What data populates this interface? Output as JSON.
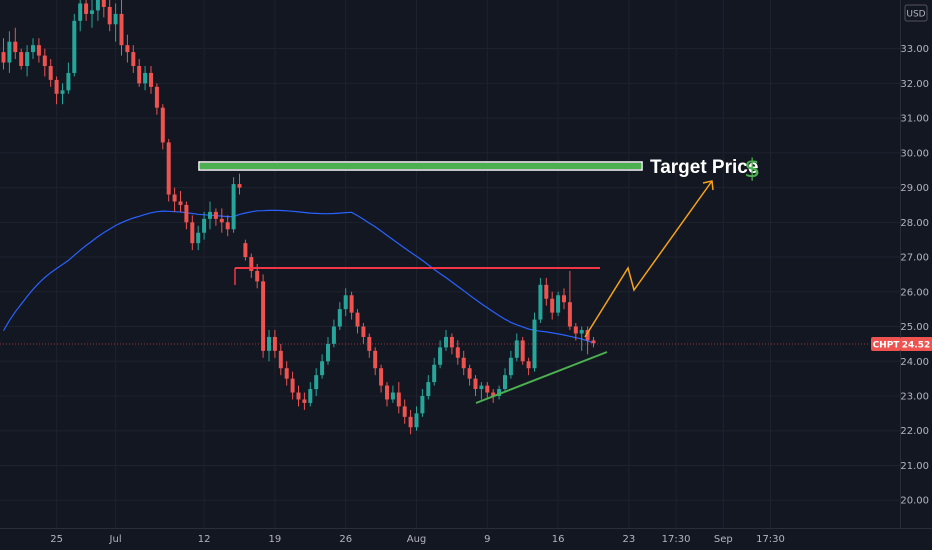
{
  "chart_data": {
    "type": "candlestick",
    "symbol": "CHPT",
    "last_price": "24.52",
    "currency_label": "USD",
    "ylim": [
      19.2,
      34.4
    ],
    "yticks": [
      "20.00",
      "21.00",
      "22.00",
      "23.00",
      "24.00",
      "25.00",
      "26.00",
      "27.00",
      "28.00",
      "29.00",
      "30.00",
      "31.00",
      "32.00",
      "33.00"
    ],
    "xticks": [
      {
        "label": "25",
        "index": 9
      },
      {
        "label": "Jul",
        "index": 19
      },
      {
        "label": "12",
        "index": 34
      },
      {
        "label": "19",
        "index": 46
      },
      {
        "label": "26",
        "index": 58
      },
      {
        "label": "Aug",
        "index": 70
      },
      {
        "label": "9",
        "index": 82
      },
      {
        "label": "16",
        "index": 94
      },
      {
        "label": "23",
        "index": 106
      },
      {
        "label": "17:30",
        "index": 114
      },
      {
        "label": "Sep",
        "index": 122
      },
      {
        "label": "17:30",
        "index": 130
      }
    ],
    "candles": [
      [
        32.9,
        33.3,
        32.4,
        32.6
      ],
      [
        32.6,
        33.5,
        32.3,
        33.2
      ],
      [
        33.2,
        33.6,
        32.7,
        32.9
      ],
      [
        32.9,
        33.0,
        32.4,
        32.5
      ],
      [
        32.5,
        33.1,
        32.2,
        32.9
      ],
      [
        32.9,
        33.3,
        32.7,
        33.1
      ],
      [
        33.1,
        33.3,
        32.6,
        32.8
      ],
      [
        32.8,
        33.0,
        32.2,
        32.5
      ],
      [
        32.5,
        32.7,
        31.9,
        32.1
      ],
      [
        32.1,
        32.2,
        31.4,
        31.7
      ],
      [
        31.7,
        32.0,
        31.4,
        31.8
      ],
      [
        31.8,
        32.6,
        31.7,
        32.3
      ],
      [
        32.3,
        34.0,
        32.2,
        33.8
      ],
      [
        33.8,
        34.6,
        33.5,
        34.3
      ],
      [
        34.3,
        34.6,
        33.8,
        34.0
      ],
      [
        34.0,
        34.5,
        33.6,
        34.1
      ],
      [
        34.1,
        34.6,
        33.8,
        34.4
      ],
      [
        34.4,
        34.6,
        33.9,
        34.2
      ],
      [
        34.2,
        34.4,
        33.5,
        33.7
      ],
      [
        33.7,
        34.3,
        33.2,
        34.0
      ],
      [
        34.0,
        34.4,
        32.8,
        33.1
      ],
      [
        33.1,
        33.4,
        32.6,
        32.9
      ],
      [
        32.9,
        33.1,
        32.3,
        32.5
      ],
      [
        32.5,
        32.7,
        31.9,
        32.0
      ],
      [
        32.0,
        32.5,
        31.8,
        32.3
      ],
      [
        32.3,
        32.5,
        31.7,
        31.9
      ],
      [
        31.9,
        32.0,
        31.1,
        31.3
      ],
      [
        31.3,
        31.4,
        30.1,
        30.3
      ],
      [
        30.3,
        30.4,
        28.6,
        28.8
      ],
      [
        28.8,
        29.0,
        28.3,
        28.6
      ],
      [
        28.6,
        28.9,
        28.3,
        28.5
      ],
      [
        28.5,
        28.6,
        27.8,
        28.0
      ],
      [
        28.0,
        28.2,
        27.2,
        27.4
      ],
      [
        27.4,
        27.9,
        27.2,
        27.7
      ],
      [
        27.7,
        28.3,
        27.5,
        28.1
      ],
      [
        28.1,
        28.6,
        27.8,
        28.3
      ],
      [
        28.3,
        28.4,
        27.9,
        28.1
      ],
      [
        28.1,
        28.4,
        27.7,
        28.0
      ],
      [
        28.0,
        28.2,
        27.6,
        27.8
      ],
      [
        27.8,
        29.3,
        27.7,
        29.1
      ],
      [
        29.1,
        29.4,
        28.8,
        29.0
      ],
      [
        27.4,
        27.5,
        26.9,
        27.0
      ],
      [
        27.0,
        27.1,
        26.4,
        26.6
      ],
      [
        26.6,
        26.8,
        26.1,
        26.3
      ],
      [
        26.3,
        26.5,
        24.1,
        24.3
      ],
      [
        24.3,
        24.9,
        24.0,
        24.7
      ],
      [
        24.7,
        24.9,
        24.1,
        24.3
      ],
      [
        24.3,
        24.5,
        23.6,
        23.8
      ],
      [
        23.8,
        24.0,
        23.3,
        23.5
      ],
      [
        23.5,
        23.7,
        22.9,
        23.1
      ],
      [
        23.1,
        23.3,
        22.7,
        22.9
      ],
      [
        22.9,
        23.1,
        22.6,
        22.8
      ],
      [
        22.8,
        23.4,
        22.7,
        23.2
      ],
      [
        23.2,
        23.8,
        23.0,
        23.6
      ],
      [
        23.6,
        24.2,
        23.5,
        24.0
      ],
      [
        24.0,
        24.7,
        23.9,
        24.5
      ],
      [
        24.5,
        25.2,
        24.4,
        25.0
      ],
      [
        25.0,
        25.7,
        24.9,
        25.5
      ],
      [
        25.5,
        26.1,
        25.3,
        25.9
      ],
      [
        25.9,
        26.0,
        25.2,
        25.4
      ],
      [
        25.4,
        25.5,
        24.8,
        25.0
      ],
      [
        25.0,
        25.1,
        24.5,
        24.7
      ],
      [
        24.7,
        24.8,
        24.1,
        24.3
      ],
      [
        24.3,
        24.4,
        23.6,
        23.8
      ],
      [
        23.8,
        23.9,
        23.1,
        23.3
      ],
      [
        23.3,
        23.4,
        22.7,
        22.9
      ],
      [
        22.9,
        23.3,
        22.8,
        23.1
      ],
      [
        23.1,
        23.4,
        22.5,
        22.7
      ],
      [
        22.7,
        22.9,
        22.2,
        22.4
      ],
      [
        22.4,
        22.6,
        21.9,
        22.1
      ],
      [
        22.1,
        22.7,
        22.0,
        22.5
      ],
      [
        22.5,
        23.2,
        22.4,
        23.0
      ],
      [
        23.0,
        23.6,
        22.9,
        23.4
      ],
      [
        23.4,
        24.1,
        23.3,
        23.9
      ],
      [
        23.9,
        24.6,
        23.8,
        24.4
      ],
      [
        24.4,
        24.9,
        24.3,
        24.7
      ],
      [
        24.7,
        24.8,
        24.2,
        24.4
      ],
      [
        24.4,
        24.6,
        23.9,
        24.1
      ],
      [
        24.1,
        24.3,
        23.6,
        23.8
      ],
      [
        23.8,
        23.9,
        23.3,
        23.5
      ],
      [
        23.5,
        23.6,
        23.0,
        23.2
      ],
      [
        23.2,
        23.4,
        22.9,
        23.3
      ],
      [
        23.3,
        23.4,
        22.9,
        23.1
      ],
      [
        23.1,
        23.2,
        22.8,
        23.0
      ],
      [
        23.0,
        23.3,
        22.9,
        23.2
      ],
      [
        23.2,
        23.8,
        23.1,
        23.6
      ],
      [
        23.6,
        24.3,
        23.5,
        24.1
      ],
      [
        24.1,
        24.8,
        24.0,
        24.6
      ],
      [
        24.6,
        24.7,
        23.9,
        24.0
      ],
      [
        24.0,
        24.1,
        23.6,
        23.8
      ],
      [
        23.8,
        25.4,
        23.7,
        25.2
      ],
      [
        25.2,
        26.4,
        25.1,
        26.2
      ],
      [
        26.2,
        26.4,
        25.6,
        25.8
      ],
      [
        25.8,
        26.0,
        25.2,
        25.4
      ],
      [
        25.4,
        26.0,
        25.3,
        25.9
      ],
      [
        25.9,
        26.1,
        25.5,
        25.7
      ],
      [
        25.7,
        26.6,
        24.9,
        25.0
      ],
      [
        25.0,
        25.1,
        24.6,
        24.8
      ],
      [
        24.8,
        25.0,
        24.3,
        24.9
      ],
      [
        24.9,
        25.0,
        24.2,
        24.6
      ],
      [
        24.6,
        24.7,
        24.4,
        24.52
      ]
    ]
  },
  "annotations": {
    "target_label": "Target Price",
    "target_symbol": "$",
    "colors": {
      "up": "#26a69a",
      "down": "#ef5350",
      "target_zone": "#4caf50",
      "resistance": "#f23645",
      "support": "#4caf50",
      "projection": "#f7a21b",
      "moving_average": "#2962ff"
    }
  }
}
